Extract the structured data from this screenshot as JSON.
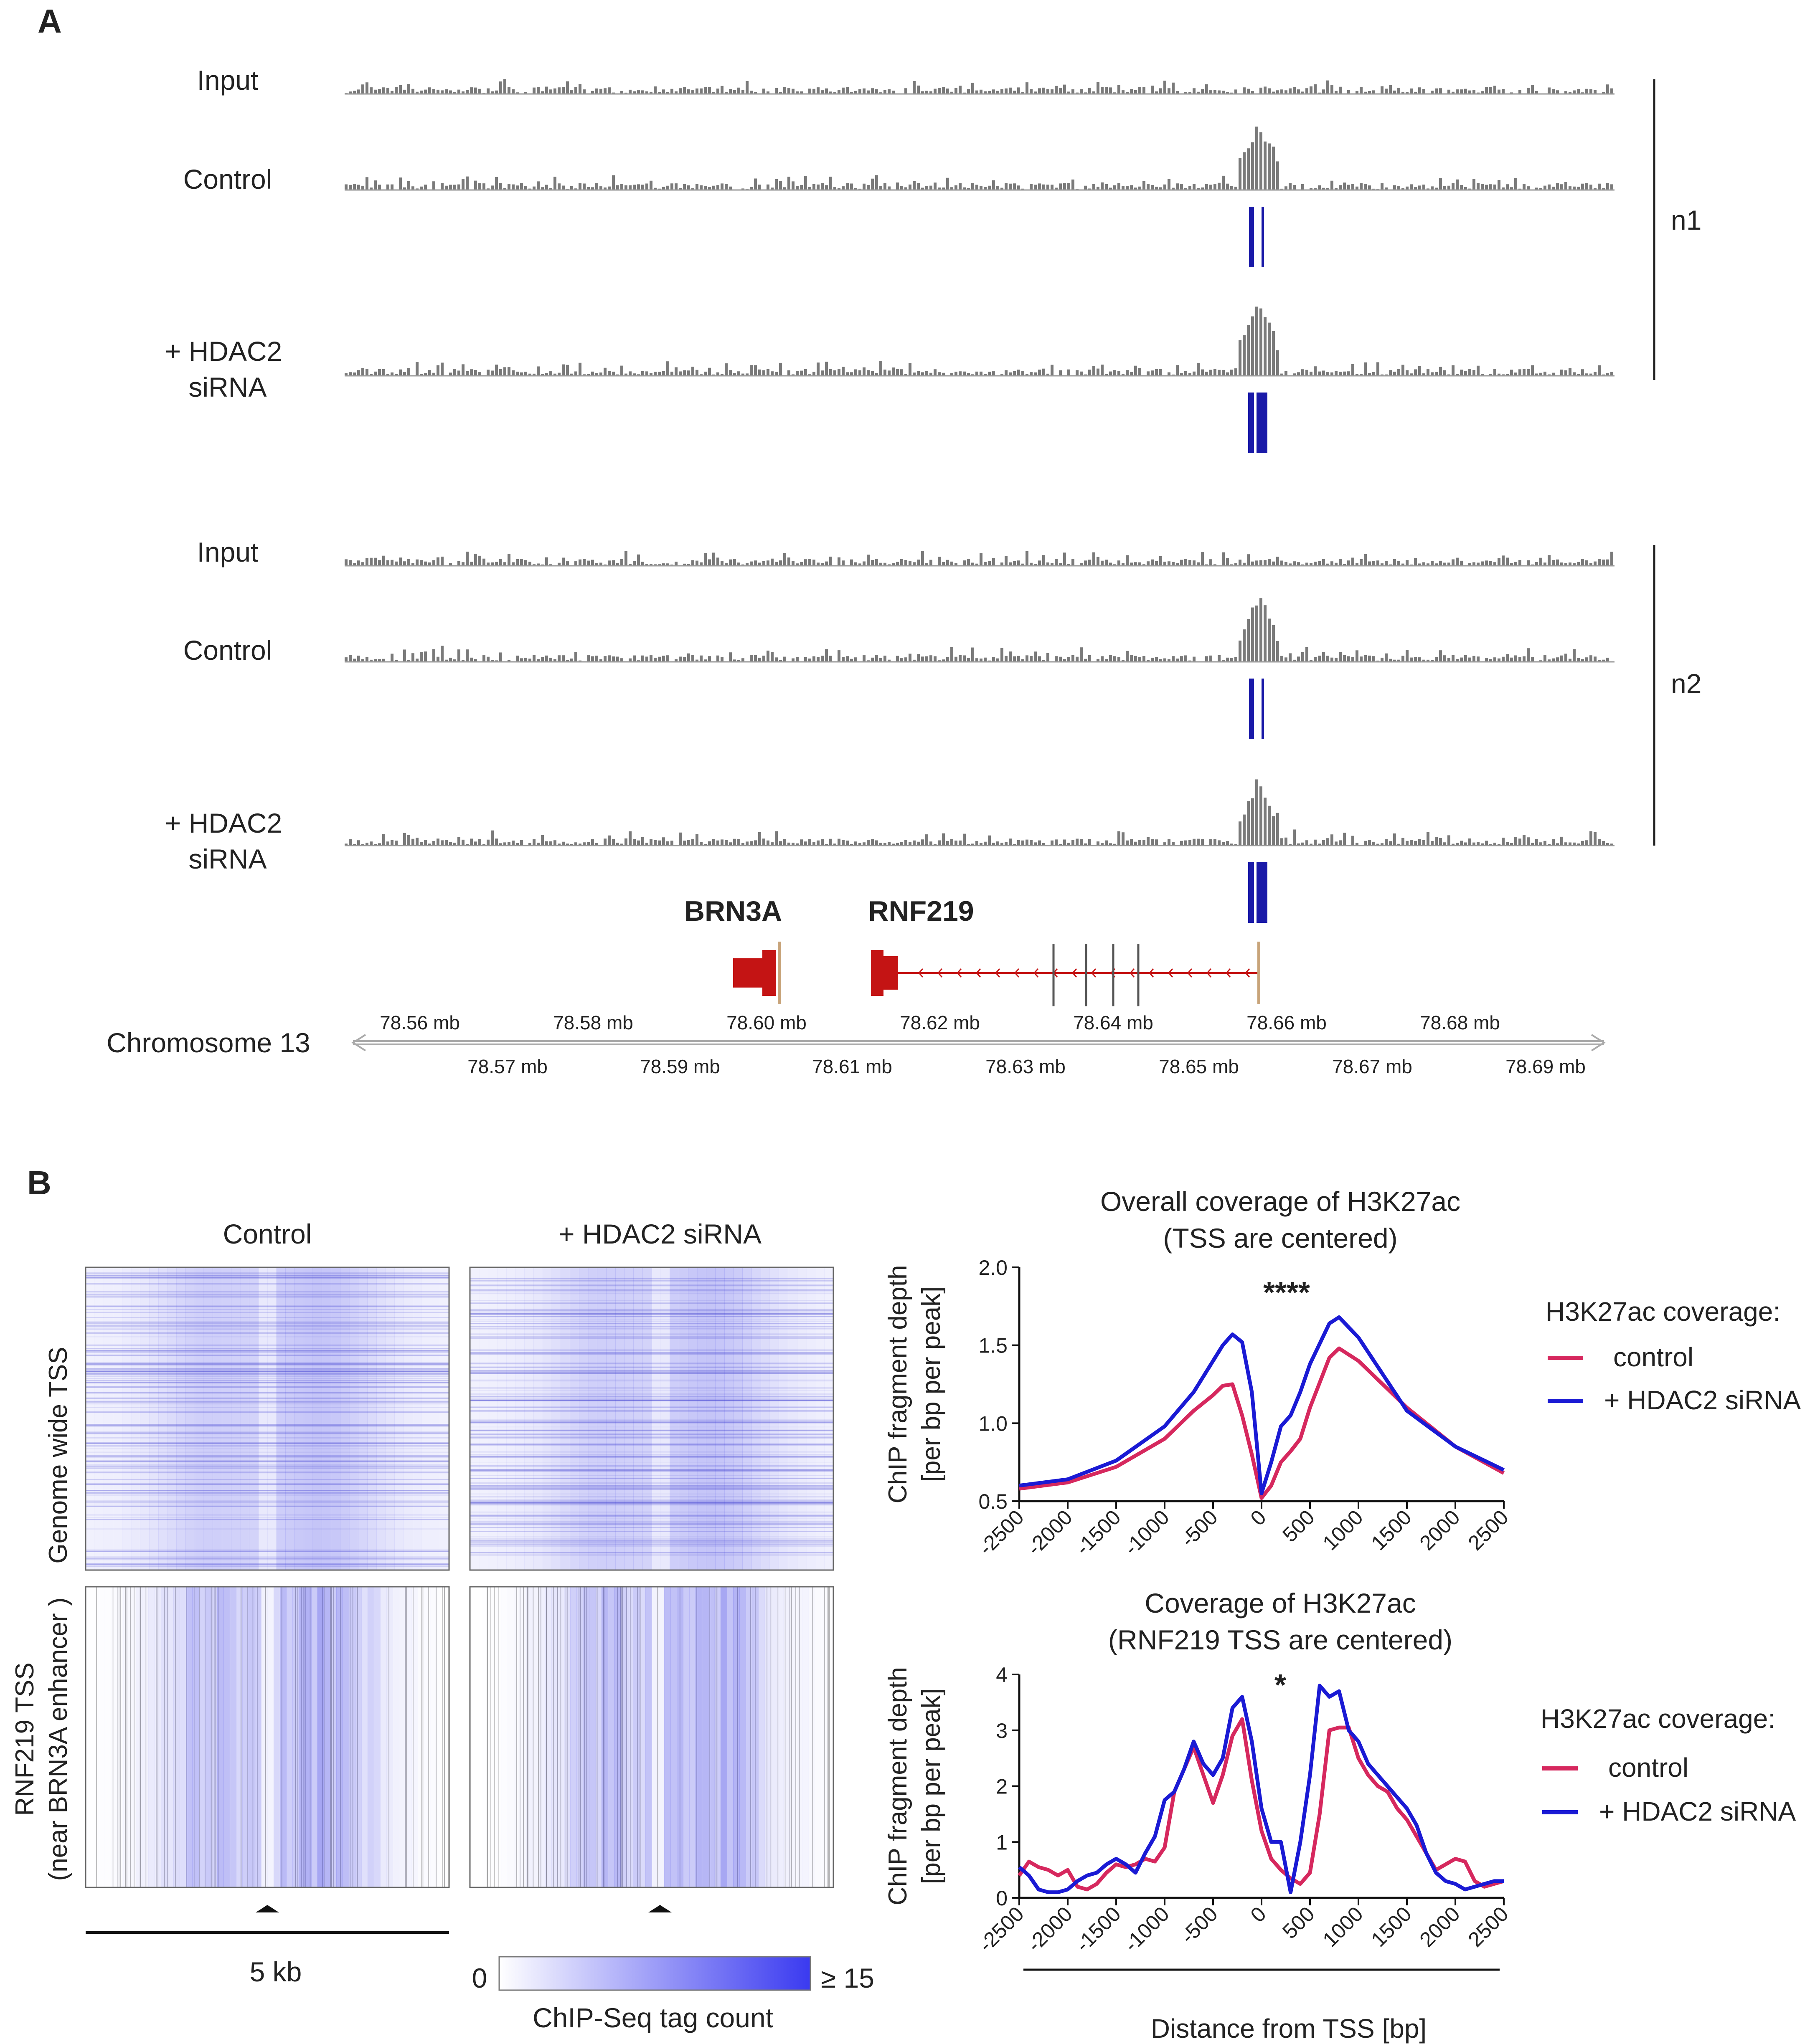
{
  "panel_a": {
    "letter": "A",
    "replicates": [
      {
        "label": "n1",
        "tracks": [
          {
            "label_lines": [
              "Input"
            ],
            "peak": false,
            "bars": 0
          },
          {
            "label_lines": [
              "Control"
            ],
            "peak": true,
            "bars": 2
          },
          {
            "label_lines": [
              "+ HDAC2",
              "siRNA"
            ],
            "peak": true,
            "bars": 3
          }
        ]
      },
      {
        "label": "n2",
        "tracks": [
          {
            "label_lines": [
              "Input"
            ],
            "peak": false,
            "bars": 0
          },
          {
            "label_lines": [
              "Control"
            ],
            "peak": true,
            "bars": 2
          },
          {
            "label_lines": [
              "+ HDAC2",
              "siRNA"
            ],
            "peak": true,
            "bars": 3
          }
        ]
      }
    ],
    "genes": [
      "BRN3A",
      "RNF219"
    ],
    "chromosome_label": "Chromosome 13",
    "ticks_upper": [
      "78.56 mb",
      "78.58 mb",
      "78.60 mb",
      "78.62 mb",
      "78.64 mb",
      "78.66 mb",
      "78.68 mb"
    ],
    "ticks_lower": [
      "78.57 mb",
      "78.59 mb",
      "78.61 mb",
      "78.63 mb",
      "78.65 mb",
      "78.67 mb",
      "78.69 mb"
    ]
  },
  "panel_b": {
    "letter": "B",
    "heatmap_titles": [
      "Control",
      "+ HDAC2 siRNA"
    ],
    "row_labels": [
      [
        "Genome wide TSS"
      ],
      [
        "RNF219 TSS",
        "(near BRN3A enhancer )"
      ]
    ],
    "scale_label": "5 kb",
    "colorbar": {
      "min_label": "0",
      "max_label": "≥ 15",
      "title": "ChIP-Seq tag count",
      "color_low": "#ffffff",
      "color_high": "#3a3af0"
    },
    "legend_title": "H3K27ac coverage:",
    "legend": [
      {
        "name": "control",
        "color": "#d6285e"
      },
      {
        "name": "+ HDAC2 siRNA",
        "color": "#1a1ad4"
      }
    ],
    "xaxis_label": "Distance from TSS [bp]"
  },
  "chart_data": [
    {
      "type": "line",
      "title_lines": [
        "Overall coverage of H3K27ac",
        "(TSS are centered)"
      ],
      "ylabel_lines": [
        "ChIP fragment depth",
        "[per bp per peak]"
      ],
      "xlim": [
        -2500,
        2500
      ],
      "ylim": [
        0.5,
        2.0
      ],
      "yticks": [
        "0.5",
        "1.0",
        "1.5",
        "2.0"
      ],
      "xticks": [
        "-2500",
        "-2000",
        "-1500",
        "-1000",
        "-500",
        "0",
        "500",
        "1000",
        "1500",
        "2000",
        "2500"
      ],
      "annotation": "****",
      "x": [
        -2500,
        -2000,
        -1500,
        -1000,
        -700,
        -500,
        -400,
        -300,
        -200,
        -100,
        0,
        100,
        200,
        300,
        400,
        500,
        700,
        800,
        1000,
        1500,
        2000,
        2500
      ],
      "series": [
        {
          "name": "control",
          "color": "#d6285e",
          "values": [
            0.58,
            0.62,
            0.72,
            0.9,
            1.08,
            1.18,
            1.24,
            1.25,
            1.05,
            0.8,
            0.52,
            0.6,
            0.75,
            0.82,
            0.9,
            1.1,
            1.42,
            1.48,
            1.4,
            1.1,
            0.85,
            0.68
          ]
        },
        {
          "name": "+ HDAC2 siRNA",
          "color": "#1a1ad4",
          "values": [
            0.6,
            0.64,
            0.76,
            0.98,
            1.2,
            1.4,
            1.5,
            1.57,
            1.52,
            1.2,
            0.55,
            0.75,
            0.98,
            1.05,
            1.2,
            1.38,
            1.64,
            1.68,
            1.55,
            1.08,
            0.85,
            0.7
          ]
        }
      ]
    },
    {
      "type": "line",
      "title_lines": [
        "Coverage of H3K27ac",
        "(RNF219 TSS are centered)"
      ],
      "ylabel_lines": [
        "ChIP fragment depth",
        "[per bp per peak]"
      ],
      "xlim": [
        -2500,
        2500
      ],
      "ylim": [
        0,
        4
      ],
      "yticks": [
        "0",
        "1",
        "2",
        "3",
        "4"
      ],
      "xticks": [
        "-2500",
        "-2000",
        "-1500",
        "-1000",
        "-500",
        "0",
        "500",
        "1000",
        "1500",
        "2000",
        "2500"
      ],
      "annotation": "*",
      "x": [
        -2500,
        -2400,
        -2300,
        -2200,
        -2100,
        -2000,
        -1900,
        -1800,
        -1700,
        -1600,
        -1500,
        -1400,
        -1300,
        -1200,
        -1100,
        -1000,
        -900,
        -800,
        -700,
        -600,
        -500,
        -400,
        -300,
        -200,
        -100,
        0,
        100,
        200,
        300,
        400,
        500,
        600,
        700,
        800,
        900,
        1000,
        1100,
        1200,
        1300,
        1400,
        1500,
        1600,
        1700,
        1800,
        1900,
        2000,
        2100,
        2200,
        2300,
        2400,
        2500
      ],
      "series": [
        {
          "name": "control",
          "color": "#d6285e",
          "values": [
            0.4,
            0.65,
            0.55,
            0.5,
            0.4,
            0.5,
            0.2,
            0.15,
            0.25,
            0.45,
            0.6,
            0.55,
            0.6,
            0.7,
            0.65,
            0.9,
            1.9,
            2.3,
            2.7,
            2.2,
            1.7,
            2.2,
            2.9,
            3.2,
            2.1,
            1.2,
            0.7,
            0.5,
            0.35,
            0.25,
            0.45,
            1.5,
            3.0,
            3.05,
            3.05,
            2.5,
            2.2,
            2.0,
            1.9,
            1.6,
            1.4,
            1.1,
            0.8,
            0.5,
            0.6,
            0.7,
            0.65,
            0.3,
            0.2,
            0.25,
            0.3
          ]
        },
        {
          "name": "+ HDAC2 siRNA",
          "color": "#1a1ad4",
          "values": [
            0.55,
            0.4,
            0.15,
            0.1,
            0.1,
            0.15,
            0.3,
            0.4,
            0.45,
            0.6,
            0.7,
            0.6,
            0.45,
            0.8,
            1.1,
            1.75,
            1.9,
            2.3,
            2.8,
            2.4,
            2.2,
            2.5,
            3.4,
            3.6,
            2.8,
            1.6,
            1.0,
            1.0,
            0.1,
            1.0,
            2.2,
            3.8,
            3.6,
            3.7,
            3.0,
            2.8,
            2.4,
            2.2,
            2.0,
            1.8,
            1.6,
            1.3,
            0.8,
            0.45,
            0.3,
            0.25,
            0.15,
            0.2,
            0.25,
            0.3,
            0.3
          ]
        }
      ]
    }
  ]
}
